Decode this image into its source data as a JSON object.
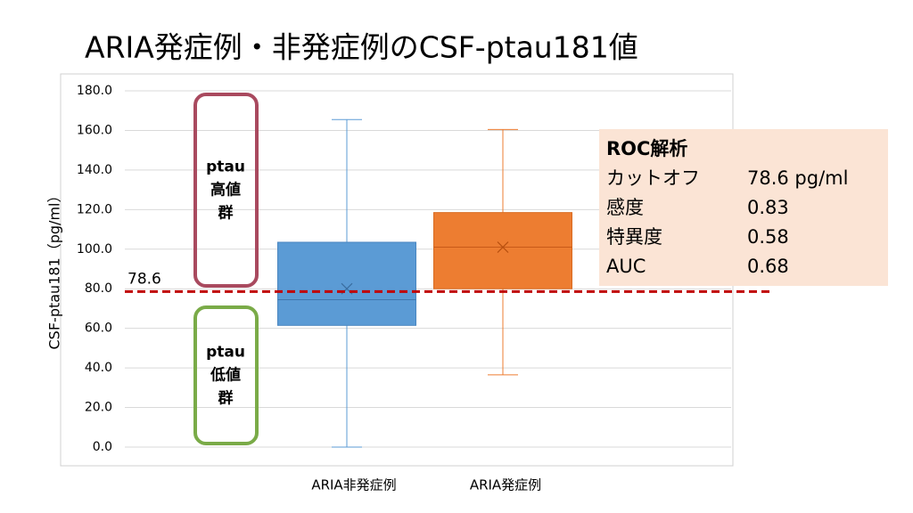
{
  "chart_data": {
    "type": "box",
    "title": "ARIA発症例・非発症例のCSF-ptau181値",
    "y_label": "CSF-ptau181（pg/ml）",
    "categories": [
      "ARIA非発症例",
      "ARIA発症例"
    ],
    "colors": [
      "#5b9bd5",
      "#ed7d31"
    ],
    "boxes": [
      {
        "min": 0,
        "q1": 61.5,
        "median": 74.5,
        "q3": 103.5,
        "max": 165.5,
        "mean": 80
      },
      {
        "min": 36.5,
        "q1": 80,
        "median": 101,
        "q3": 118.5,
        "max": 160.5,
        "mean": 101
      }
    ],
    "ylim": [
      0,
      180
    ],
    "yticks": [
      {
        "value": 0,
        "label": "0.0"
      },
      {
        "value": 20,
        "label": "20.0"
      },
      {
        "value": 40,
        "label": "40.0"
      },
      {
        "value": 60,
        "label": "60.0"
      },
      {
        "value": 80,
        "label": "80.0"
      },
      {
        "value": 100,
        "label": "100.0"
      },
      {
        "value": 120,
        "label": "120.0"
      },
      {
        "value": 140,
        "label": "140.0"
      },
      {
        "value": 160,
        "label": "160.0"
      },
      {
        "value": 180,
        "label": "180.0"
      }
    ],
    "grid": true,
    "cutoff": 78.6,
    "cutoff_color": "#c00000",
    "annotations": [
      {
        "lines": [
          "ptau",
          "高値",
          "群"
        ],
        "color": "#a94a5f"
      },
      {
        "lines": [
          "ptau",
          "低値",
          "群"
        ],
        "color": "#7aab48"
      }
    ],
    "roc_table": {
      "title": "ROC解析",
      "rows": [
        [
          "カットオフ",
          "78.6 pg/ml"
        ],
        [
          "感度",
          "0.83"
        ],
        [
          "特異度",
          "0.58"
        ],
        [
          "AUC",
          "0.68"
        ]
      ]
    }
  }
}
